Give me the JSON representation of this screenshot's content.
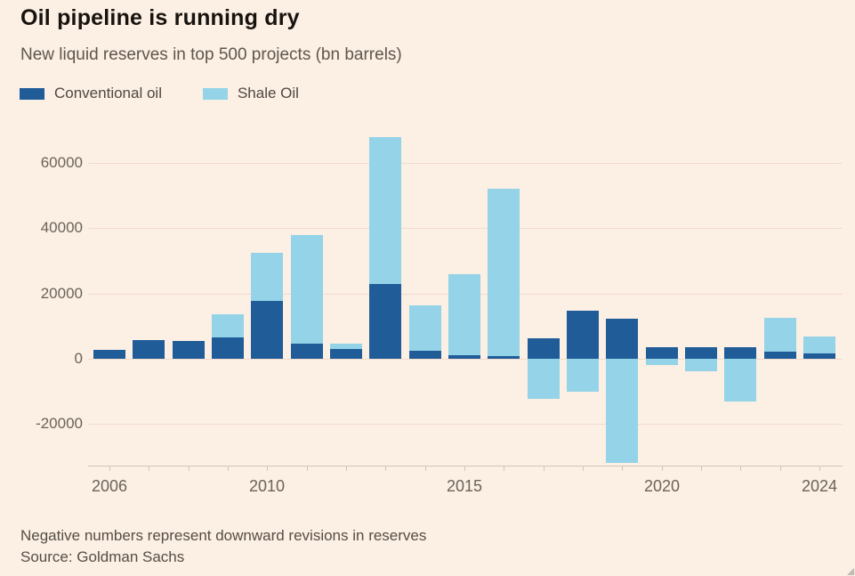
{
  "footnote": "Negative numbers represent downward revisions in reserves",
  "source": "Source: Goldman Sachs",
  "colors": {
    "background": "#fcefe4",
    "conventional": "#205c98",
    "shale": "#94d3e8",
    "grid": "#f2dccd",
    "axis": "#d2c6ba",
    "text_dark": "#17130f",
    "text_muted": "#5e564c",
    "tick_label": "#6b6359"
  },
  "chart_data": {
    "type": "bar",
    "stacked": true,
    "title": "Oil pipeline is running dry",
    "subtitle": "New liquid reserves in top 500 projects (bn barrels)",
    "xlabel": "",
    "ylabel": "",
    "grid": true,
    "legend_position": "top",
    "ylim": [
      -33000,
      69000
    ],
    "yticks": [
      "60000",
      "40000",
      "20000",
      "0",
      "-20000"
    ],
    "categories": [
      2006,
      2007,
      2008,
      2009,
      2010,
      2011,
      2012,
      2013,
      2014,
      2015,
      2016,
      2017,
      2018,
      2019,
      2020,
      2021,
      2022,
      2023,
      2024
    ],
    "xticks_labeled": [
      2006,
      2010,
      2015,
      2020,
      2024
    ],
    "series": [
      {
        "name": "Conventional oil",
        "color": "#205c98",
        "values": [
          2800,
          5800,
          5500,
          6600,
          17800,
          4700,
          3000,
          23000,
          2400,
          1100,
          700,
          6200,
          14800,
          12300,
          3500,
          3500,
          3500,
          2200,
          1600
        ]
      },
      {
        "name": "Shale Oil",
        "color": "#94d3e8",
        "values": [
          0,
          0,
          0,
          7000,
          14700,
          33300,
          1600,
          45000,
          14000,
          24700,
          51500,
          -12300,
          -10000,
          -32000,
          -1900,
          -3800,
          -13100,
          10400,
          5200
        ]
      }
    ]
  }
}
